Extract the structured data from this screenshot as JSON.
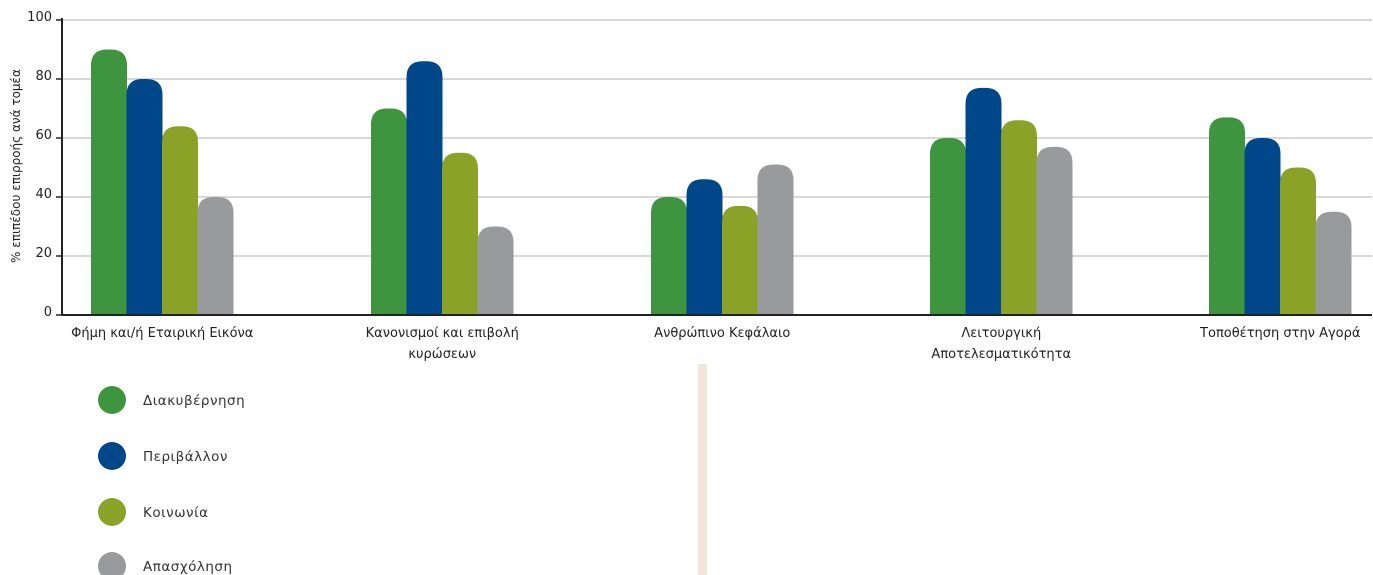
{
  "chart_data": {
    "type": "bar",
    "ylabel": "% επιπέδου επιρροής ανά τομέα",
    "ylim": [
      0,
      100
    ],
    "yticks": [
      0,
      20,
      40,
      60,
      80,
      100
    ],
    "grid": true,
    "legend_position": "bottom-left",
    "categories": [
      [
        "Φήμη και/ή Εταιρική Εικόνα"
      ],
      [
        "Κανονισμοί και επιβολή",
        "κυρώσεων"
      ],
      [
        "Ανθρώπινο Κεφάλαιο"
      ],
      [
        "Λειτουργική",
        "Αποτελεσματικότητα"
      ],
      [
        "Τοποθέτηση στην Αγορά"
      ]
    ],
    "series": [
      {
        "name": "Διακυβέρνηση",
        "color": "#3f9440",
        "values": [
          90,
          70,
          40,
          60,
          67
        ]
      },
      {
        "name": "Περιβάλλον",
        "color": "#00478a",
        "values": [
          80,
          86,
          46,
          77,
          60
        ]
      },
      {
        "name": "Κοινωνία",
        "color": "#8aa227",
        "values": [
          64,
          55,
          37,
          66,
          50
        ]
      },
      {
        "name": "Απασχόληση",
        "color": "#999a9c",
        "values": [
          40,
          30,
          51,
          57,
          35
        ]
      }
    ]
  },
  "colors": {
    "grid": "#d8d8d8",
    "axis": "#222222",
    "divider": "#f3e6dd"
  }
}
